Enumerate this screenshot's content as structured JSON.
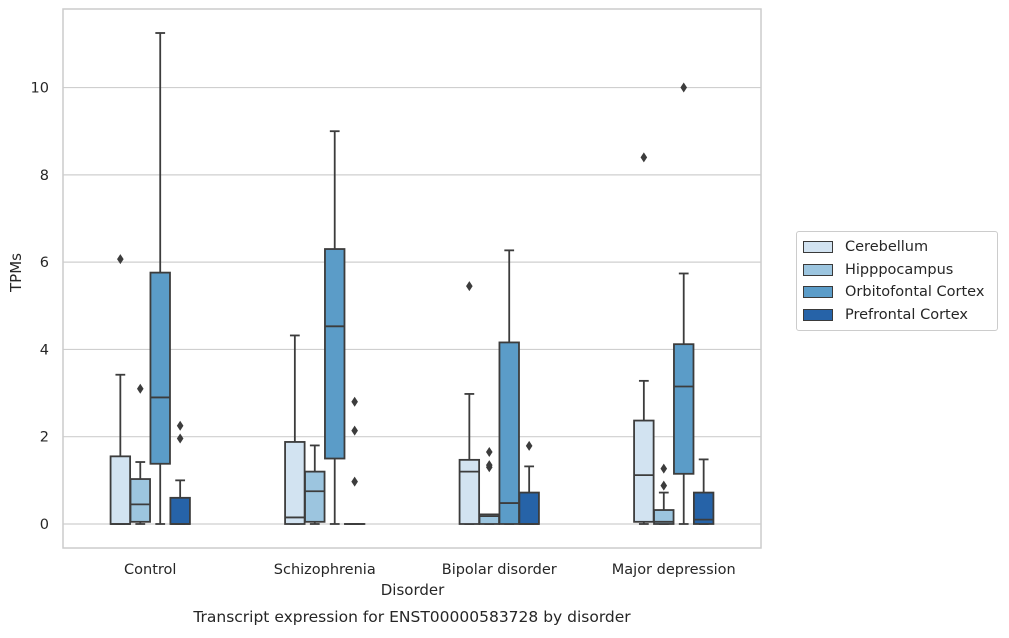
{
  "chart_data": {
    "type": "box",
    "xlabel": "Disorder",
    "ylabel": "TPMs",
    "caption": "Transcript expression for ENST00000583728 by disorder",
    "ylim": [
      -0.55,
      11.8
    ],
    "yticks": [
      0,
      2,
      4,
      6,
      8,
      10
    ],
    "grid": "horizontal",
    "legend_position": "outside-right",
    "categories": [
      "Control",
      "Schizophrenia",
      "Bipolar disorder",
      "Major depression"
    ],
    "series": [
      {
        "name": "Cerebellum",
        "color": "#d2e3f1",
        "boxes": [
          {
            "whislo": 0,
            "q1": 0,
            "med": 0,
            "q3": 1.55,
            "whishi": 3.42,
            "fliers": [
              6.07
            ]
          },
          {
            "whislo": 0,
            "q1": 0,
            "med": 0.15,
            "q3": 1.88,
            "whishi": 4.32,
            "fliers": []
          },
          {
            "whislo": 0,
            "q1": 0,
            "med": 1.2,
            "q3": 1.47,
            "whishi": 2.98,
            "fliers": [
              5.45
            ]
          },
          {
            "whislo": 0,
            "q1": 0.05,
            "med": 1.12,
            "q3": 2.37,
            "whishi": 3.28,
            "fliers": [
              8.4
            ]
          }
        ]
      },
      {
        "name": "Hipppocampus",
        "color": "#9cc5df",
        "boxes": [
          {
            "whislo": 0,
            "q1": 0.05,
            "med": 0.45,
            "q3": 1.03,
            "whishi": 1.42,
            "fliers": [
              3.1
            ]
          },
          {
            "whislo": 0,
            "q1": 0.05,
            "med": 0.75,
            "q3": 1.2,
            "whishi": 1.8,
            "fliers": []
          },
          {
            "whislo": 0,
            "q1": 0,
            "med": 0.18,
            "q3": 0.22,
            "whishi": 0.22,
            "fliers": [
              1.3,
              1.35,
              1.65
            ]
          },
          {
            "whislo": 0,
            "q1": 0,
            "med": 0.05,
            "q3": 0.32,
            "whishi": 0.72,
            "fliers": [
              0.88,
              1.27
            ]
          }
        ]
      },
      {
        "name": "Orbitofontal Cortex",
        "color": "#5b9cc8",
        "boxes": [
          {
            "whislo": 0,
            "q1": 1.38,
            "med": 2.9,
            "q3": 5.76,
            "whishi": 11.25,
            "fliers": []
          },
          {
            "whislo": 0,
            "q1": 1.5,
            "med": 4.53,
            "q3": 6.3,
            "whishi": 9.0,
            "fliers": []
          },
          {
            "whislo": 0,
            "q1": 0,
            "med": 0.48,
            "q3": 4.16,
            "whishi": 6.27,
            "fliers": []
          },
          {
            "whislo": 0,
            "q1": 1.15,
            "med": 3.15,
            "q3": 4.12,
            "whishi": 5.74,
            "fliers": [
              10.0
            ]
          }
        ]
      },
      {
        "name": "Prefrontal Cortex",
        "color": "#2663a8",
        "boxes": [
          {
            "whislo": 0,
            "q1": 0,
            "med": 0,
            "q3": 0.6,
            "whishi": 1.0,
            "fliers": [
              1.96,
              2.25
            ]
          },
          {
            "whislo": 0,
            "q1": 0,
            "med": 0,
            "q3": 0,
            "whishi": 0,
            "fliers": [
              0.97,
              2.14,
              2.8
            ]
          },
          {
            "whislo": 0,
            "q1": 0,
            "med": 0,
            "q3": 0.72,
            "whishi": 1.32,
            "fliers": [
              1.79
            ]
          },
          {
            "whislo": 0,
            "q1": 0,
            "med": 0.1,
            "q3": 0.72,
            "whishi": 1.48,
            "fliers": []
          }
        ]
      }
    ]
  }
}
